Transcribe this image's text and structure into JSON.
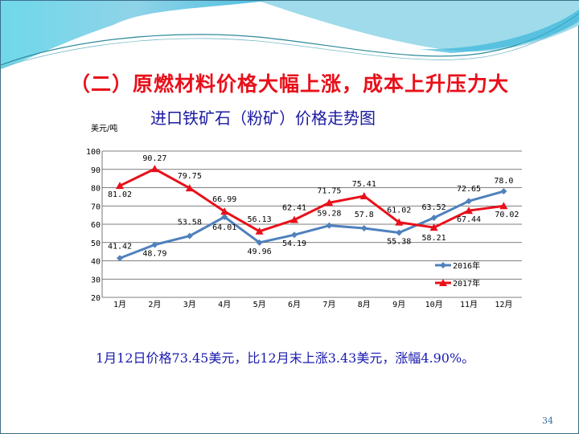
{
  "slide": {
    "title": "（二）原燃材料价格大幅上涨，成本上升压力大",
    "note": "1月12日价格73.45美元，比12月末上涨3.43美元，涨幅4.90%。",
    "page_number": "34",
    "colors": {
      "title": "#e8101a",
      "text": "#1a1aa0",
      "banner": "#5fcbe3"
    }
  },
  "chart_data": {
    "type": "line",
    "title": "进口铁矿石（粉矿）价格走势图",
    "ylabel": "美元/吨",
    "xlabel": "",
    "categories": [
      "1月",
      "2月",
      "3月",
      "4月",
      "5月",
      "6月",
      "7月",
      "8月",
      "9月",
      "10月",
      "11月",
      "12月"
    ],
    "ylim": [
      20,
      100
    ],
    "yticks": [
      20,
      30,
      40,
      50,
      60,
      70,
      80,
      90,
      100
    ],
    "grid": true,
    "legend": "bottom-right",
    "series": [
      {
        "name": "2016年",
        "color": "#4f81bd",
        "marker": "diamond",
        "values": [
          41.42,
          48.79,
          53.58,
          64.01,
          49.96,
          54.19,
          59.28,
          57.8,
          55.38,
          63.52,
          72.65,
          78.0
        ],
        "labels": [
          "41.42",
          "48.79",
          "53.58",
          "64.01",
          "49.96",
          "54.19",
          "59.28",
          "57.8",
          "55.38",
          "63.52",
          "72.65",
          "78.0"
        ]
      },
      {
        "name": "2017年",
        "color": "#e8101a",
        "marker": "triangle",
        "values": [
          81.02,
          90.27,
          79.75,
          66.99,
          56.13,
          62.41,
          71.75,
          75.41,
          61.02,
          58.21,
          67.44,
          70.02
        ],
        "labels": [
          "81.02",
          "90.27",
          "79.75",
          "66.99",
          "56.13",
          "62.41",
          "71.75",
          "75.41",
          "61.02",
          "58.21",
          "67.44",
          "70.02"
        ]
      }
    ]
  }
}
